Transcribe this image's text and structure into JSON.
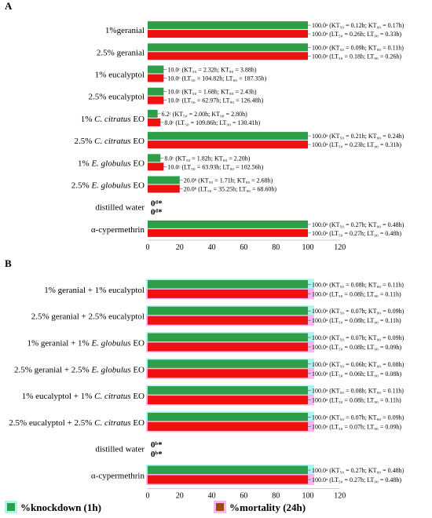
{
  "chart_data": [
    {
      "panel_label": "A",
      "type": "bar",
      "orientation": "horizontal",
      "xlim": [
        0,
        120
      ],
      "xticks": [
        "0",
        "20",
        "40",
        "60",
        "80",
        "100",
        "120"
      ],
      "categories": [
        {
          "pre": "",
          "it": "",
          "post": "1%geranial"
        },
        {
          "pre": "",
          "it": "",
          "post": "2.5% geranial"
        },
        {
          "pre": "",
          "it": "",
          "post": "1% eucalyptol"
        },
        {
          "pre": "",
          "it": "",
          "post": "2.5% eucalyptol"
        },
        {
          "pre": "1% ",
          "it": "C. citratus",
          "post": " EO"
        },
        {
          "pre": "2.5% ",
          "it": "C. citratus",
          "post": " EO"
        },
        {
          "pre": "1% ",
          "it": "E. globulus",
          "post": " EO"
        },
        {
          "pre": "2.5% ",
          "it": "E. globulus",
          "post": " EO"
        },
        {
          "pre": "",
          "it": "",
          "post": "distilled water"
        },
        {
          "pre": "",
          "it": "",
          "post": "α-cypermethrin"
        }
      ],
      "series": [
        {
          "name": "%knockdown (1h)",
          "color": "#2e9e48",
          "highlight": "#2e9e48",
          "values": [
            100,
            100,
            10,
            10,
            6.2,
            100,
            8,
            20,
            0,
            100
          ],
          "labels": [
            "100.0ᵃ (KT₅₀ = 0.12h; KT₉₀ = 0.17h)",
            "100.0ᵃ (KT₅₀ = 0.09h; KT₉₀ = 0.11h)",
            "10.0ᶜ (KT₅₀ = 2.32h; KT₉₀ = 3.88h)",
            "10.0ᶜ (KT₅₀ = 1.68h; KT₉₀ = 2.43h)",
            "6.2ᶜ (KT₅₀ = 2.00h; KT₉₀ = 2.80h)",
            "100.0ᵃ (KT₅₀ = 0.21h; KT₉₀ = 0.24h)",
            "8.0ᶜ (KT₅₀ = 1.82h; KT₉₀ = 2.20h)",
            "20.0ᵇ (KT₅₀ = 1.71h; KT₉₀ = 2.68h)",
            "0ᵈ*",
            "100.0ᵃ (KT₅₀ = 0.27h; KT₉₀ = 0.48h)"
          ]
        },
        {
          "name": "%mortality (24h)",
          "color": "#ee1111",
          "highlight": "#ee1111",
          "values": [
            100,
            100,
            10,
            10,
            8,
            100,
            10,
            20,
            0,
            100
          ],
          "labels": [
            "100.0ᵃ (LT₅₀ = 0.26h; LT₉₀ = 0.33h)",
            "100.0ᵃ (LT₅₀ = 0.18h; LT₉₀ = 0.26h)",
            "10.0ᶜ (LT₅₀ = 104.82h; LT₉₀ = 187.35h)",
            "10.0ᶜ (LT₅₀ = 62.97h; LT₉₀ = 126.48h)",
            "8.0ᶜ (LT₅₀ = 109.86h; LT₉₀ = 130.41h)",
            "100.0ᵃ (LT₅₀ = 0.23h; LT₉₀ = 0.31h)",
            "10.0ᶜ (LT₅₀ = 63.93h; LT₉₀ = 102.56h)",
            "20.0ᵇ (LT₅₀ = 35.25h; LT₉₀ = 68.60h)",
            "0ᵈ*",
            "100.0ᵃ (LT₅₀ = 0.27h; LT₉₀ = 0.48h)"
          ]
        }
      ]
    },
    {
      "panel_label": "B",
      "type": "bar",
      "orientation": "horizontal",
      "xlim": [
        0,
        120
      ],
      "xticks": [
        "0",
        "20",
        "40",
        "60",
        "80",
        "100",
        "120"
      ],
      "categories": [
        {
          "pre": "",
          "it": "",
          "post": "1% geranial + 1% eucalyptol"
        },
        {
          "pre": "",
          "it": "",
          "post": "2.5% geranial + 2.5% eucalyptol"
        },
        {
          "pre": "1% geranial + 1% ",
          "it": "E. globulus",
          "post": " EO"
        },
        {
          "pre": "2.5% geranial + 2.5% ",
          "it": "E. globulus",
          "post": " EO"
        },
        {
          "pre": "1% eucalyptol + 1% ",
          "it": "C. citratus",
          "post": " EO"
        },
        {
          "pre": "2.5% eucalyptol + 2.5% ",
          "it": "C. citratus",
          "post": " EO"
        },
        {
          "pre": "",
          "it": "",
          "post": "distilled water"
        },
        {
          "pre": "",
          "it": "",
          "post": "α-cypermethrin"
        }
      ],
      "series": [
        {
          "name": "%knockdown (1h)",
          "color": "#2e9e48",
          "highlight": "#aaf5ee",
          "values": [
            100,
            100,
            100,
            100,
            100,
            100,
            0,
            100
          ],
          "labels": [
            "100.0ᵃ (KT₅₀ = 0.08h; KT₉₀ = 0.11h)",
            "100.0ᵃ (KT₅₀ = 0.07h; KT₉₀ = 0.09h)",
            "100.0ᵃ (KT₅₀ = 0.07h; KT₉₀ = 0.09h)",
            "100.0ᵃ (KT₅₀ = 0.06h; KT₉₀ = 0.08h)",
            "100.0ᵃ (KT₅₀ = 0.08h; KT₉₀ = 0.11h)",
            "100.0ᵃ (KT₅₀ = 0.07h; KT₉₀ = 0.09h)",
            "0ᵇ*",
            "100.0ᵃ (KT₅₀ = 0.27h; KT₉₀ = 0.48h)"
          ]
        },
        {
          "name": "%mortality (24h)",
          "color": "#ee1111",
          "highlight": "#f7b6ee",
          "values": [
            100,
            100,
            100,
            100,
            100,
            100,
            0,
            100
          ],
          "labels": [
            "100.0ᵃ (LT₅₀ = 0.08h; LT₉₀ = 0.11h)",
            "100.0ᵃ (LT₅₀ = 0.08h; LT₉₀ = 0.11h)",
            "100.0ᵃ (LT₅₀ = 0.08h; LT₉₀ = 0.09h)",
            "100.0ᵃ (LT₅₀ = 0.06h; LT₉₀ = 0.08h)",
            "100.0ᵃ (LT₅₀ = 0.08h; LT₉₀ = 0.11h)",
            "100.0ᵃ (LT₅₀ = 0.07h; LT₉₀ = 0.09h)",
            "0ᵇ*",
            "100.0ᵃ (LT₅₀ = 0.27h; LT₉₀ = 0.48h)"
          ]
        }
      ]
    }
  ],
  "legend": [
    {
      "label": "%knockdown (1h)",
      "color": "#2e9e48",
      "highlight": "#aaf5ee"
    },
    {
      "label": "%mortality (24h)",
      "color": "#9c4a0c",
      "highlight": "#f7b6ee"
    }
  ]
}
